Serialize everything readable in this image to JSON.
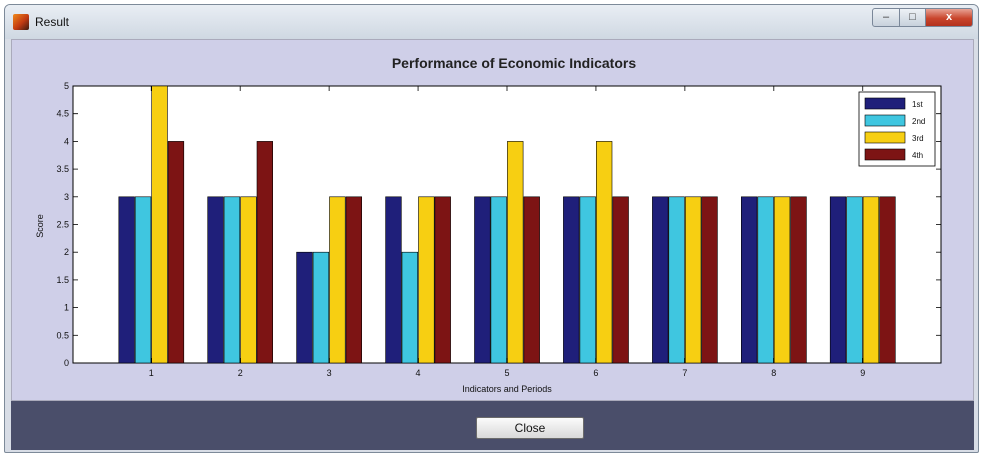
{
  "window": {
    "title": "Result",
    "close_button_label": "Close",
    "controls": {
      "minimize": "–",
      "maximize": "□",
      "close": "x"
    }
  },
  "chart_data": {
    "type": "bar",
    "title": "Performance of Economic Indicators",
    "xlabel": "Indicators and Periods",
    "ylabel": "Score",
    "categories": [
      "1",
      "2",
      "3",
      "4",
      "5",
      "6",
      "7",
      "8",
      "9"
    ],
    "ylim": [
      0,
      5
    ],
    "yticks": [
      "0",
      "0.5",
      "1",
      "1.5",
      "2",
      "2.5",
      "3",
      "3.5",
      "4",
      "4.5",
      "5"
    ],
    "legend_position": "top-right",
    "grid": false,
    "series": [
      {
        "name": "1st",
        "color": "#1f1f7a",
        "values": [
          3,
          3,
          2,
          3,
          3,
          3,
          3,
          3,
          3
        ]
      },
      {
        "name": "2nd",
        "color": "#3fc6e0",
        "values": [
          3,
          3,
          2,
          2,
          3,
          3,
          3,
          3,
          3
        ]
      },
      {
        "name": "3rd",
        "color": "#f7cf12",
        "values": [
          5,
          3,
          3,
          3,
          4,
          4,
          3,
          3,
          3
        ]
      },
      {
        "name": "4th",
        "color": "#7d1414",
        "values": [
          4,
          4,
          3,
          3,
          3,
          3,
          3,
          3,
          3
        ]
      }
    ]
  }
}
